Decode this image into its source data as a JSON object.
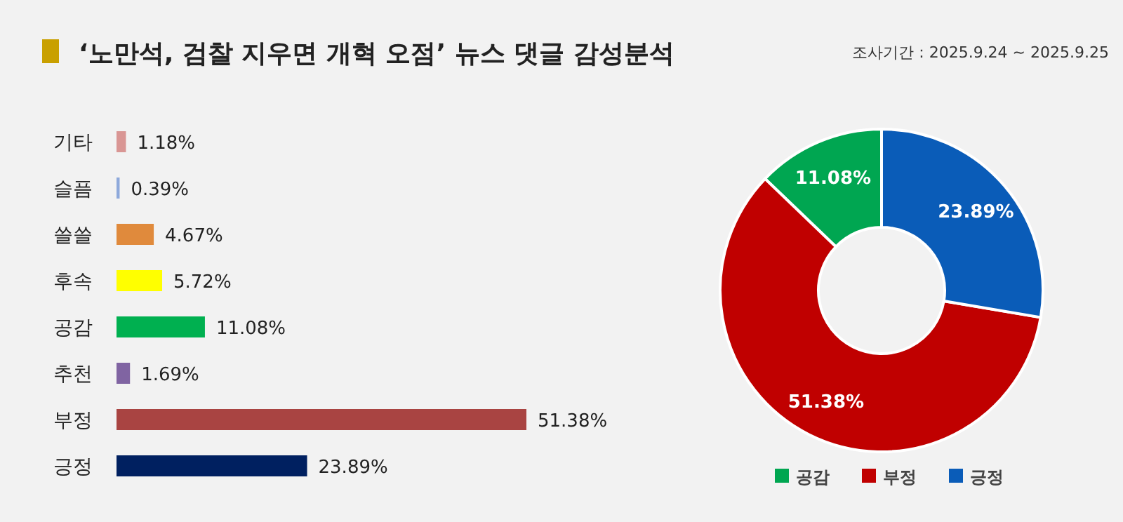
{
  "chart_data": [
    {
      "type": "bar",
      "orientation": "horizontal",
      "title": "‘노만석, 검찰 지우면 개혁 오점’ 뉴스 댓글 감성분석",
      "categories": [
        "기타",
        "슬픔",
        "쓸쓸",
        "후속",
        "공감",
        "추천",
        "부정",
        "긍정"
      ],
      "values": [
        1.18,
        0.39,
        4.67,
        5.72,
        11.08,
        1.69,
        51.38,
        23.89
      ],
      "value_labels": [
        "1.18%",
        "0.39%",
        "4.67%",
        "5.72%",
        "11.08%",
        "1.69%",
        "51.38%",
        "23.89%"
      ],
      "colors": [
        "#d99694",
        "#8ea9db",
        "#e08a3c",
        "#ffff00",
        "#00b050",
        "#8064a2",
        "#a94442",
        "#002060"
      ]
    },
    {
      "type": "donut",
      "legend": "bottom",
      "subtitle": "조사기간 : 2025.9.24 ~ 2025.9.25",
      "categories": [
        "공감",
        "부정",
        "긍정"
      ],
      "values": [
        11.08,
        51.38,
        23.89
      ],
      "value_labels": [
        "11.08%",
        "51.38%",
        "23.89%"
      ],
      "colors": [
        "#00a651",
        "#c00000",
        "#0a5cb8"
      ]
    }
  ]
}
